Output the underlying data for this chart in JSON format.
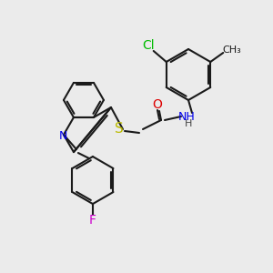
{
  "bg_color": "#ebebeb",
  "bond_color": "#1a1a1a",
  "bond_width": 1.5,
  "font_size": 9,
  "colors": {
    "N": "#0000ee",
    "O": "#dd0000",
    "S": "#bbbb00",
    "Cl": "#00bb00",
    "F": "#cc00cc",
    "C": "#1a1a1a",
    "H": "#444444"
  }
}
